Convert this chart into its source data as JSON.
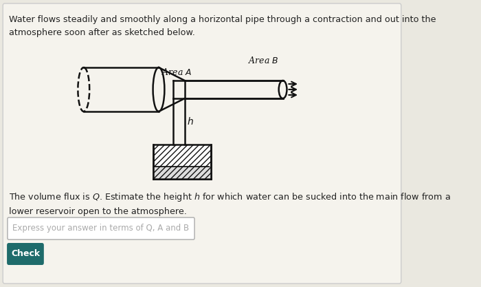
{
  "bg_color": "#eae8e0",
  "card_color": "#f5f3ed",
  "title_text": "Water flows steadily and smoothly along a horizontal pipe through a contraction and out into the\natmosphere soon after as sketched below.",
  "body_text": "The volume flux is $Q$. Estimate the height $h$ for which water can be sucked into the main flow from a\nlower reservoir open to the atmosphere.",
  "placeholder_text": "Express your answer in terms of Q, A and B",
  "button_text": "Check",
  "button_color": "#1e6b6b",
  "button_text_color": "#ffffff",
  "area_a_label": "Area $A$",
  "area_b_label": "Area $B$",
  "h_label": "$h$"
}
